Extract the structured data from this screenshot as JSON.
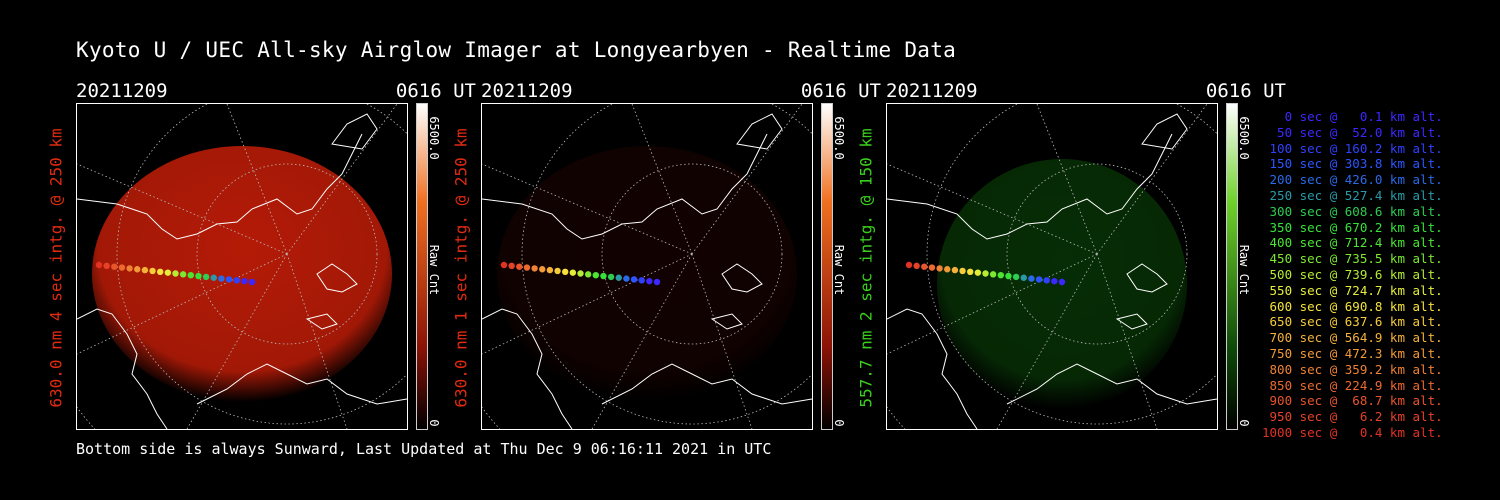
{
  "title": "Kyoto U / UEC All-sky Airglow Imager at Longyearbyen - Realtime Data",
  "footer": "Bottom side is always Sunward, Last Updated at Thu Dec  9 06:16:11 2021 in UTC",
  "panels": [
    {
      "date": "20211209",
      "time": "0616 UT",
      "ylabel": "630.0 nm 4 sec intg. @ 250 km",
      "ylabel_color": "#e02a12",
      "cbar_max": "6500.0",
      "cbar_unit": "Raw Cnt",
      "cbar_min": "0",
      "glow_color": "#c81e08",
      "glow_level": 0.9
    },
    {
      "date": "20211209",
      "time": "0616 UT",
      "ylabel": "630.0 nm 1 sec intg. @ 250 km",
      "ylabel_color": "#e02a12",
      "cbar_max": "6500.0",
      "cbar_unit": "Raw Cnt",
      "cbar_min": "0",
      "glow_color": "#3a0603",
      "glow_level": 0.3
    },
    {
      "date": "20211209",
      "time": "0616 UT",
      "ylabel": "557.7 nm 2 sec intg. @ 150 km",
      "ylabel_color": "#39d11b",
      "cbar_max": "6500.0",
      "cbar_unit": "Raw Cnt",
      "cbar_min": "0",
      "glow_color": "#0d5a0a",
      "glow_level": 0.5
    }
  ],
  "legend": [
    {
      "text": "   0 sec @   0.1 km alt.",
      "color": "#3c28ff"
    },
    {
      "text": "  50 sec @  52.0 km alt.",
      "color": "#3c28ff"
    },
    {
      "text": " 100 sec @ 160.2 km alt.",
      "color": "#3040ff"
    },
    {
      "text": " 150 sec @ 303.8 km alt.",
      "color": "#2c55ff"
    },
    {
      "text": " 200 sec @ 426.0 km alt.",
      "color": "#2a6ae8"
    },
    {
      "text": " 250 sec @ 527.4 km alt.",
      "color": "#2a9aa8"
    },
    {
      "text": " 300 sec @ 608.6 km alt.",
      "color": "#2ccd52"
    },
    {
      "text": " 350 sec @ 670.2 km alt.",
      "color": "#35e23a"
    },
    {
      "text": " 400 sec @ 712.4 km alt.",
      "color": "#4be632"
    },
    {
      "text": " 450 sec @ 735.5 km alt.",
      "color": "#7ce830"
    },
    {
      "text": " 500 sec @ 739.6 km alt.",
      "color": "#b6ec33"
    },
    {
      "text": " 550 sec @ 724.7 km alt.",
      "color": "#e4ee3a"
    },
    {
      "text": " 600 sec @ 690.8 km alt.",
      "color": "#f5e23a"
    },
    {
      "text": " 650 sec @ 637.6 km alt.",
      "color": "#f5cc3a"
    },
    {
      "text": " 700 sec @ 564.9 km alt.",
      "color": "#f4b23a"
    },
    {
      "text": " 750 sec @ 472.3 km alt.",
      "color": "#f29a38"
    },
    {
      "text": " 800 sec @ 359.2 km alt.",
      "color": "#ef8234"
    },
    {
      "text": " 850 sec @ 224.9 km alt.",
      "color": "#ec6a30"
    },
    {
      "text": " 900 sec @  68.7 km alt.",
      "color": "#e8542c"
    },
    {
      "text": " 950 sec @   6.2 km alt.",
      "color": "#e54228"
    },
    {
      "text": "1000 sec @   0.4 km alt.",
      "color": "#e23224"
    }
  ]
}
